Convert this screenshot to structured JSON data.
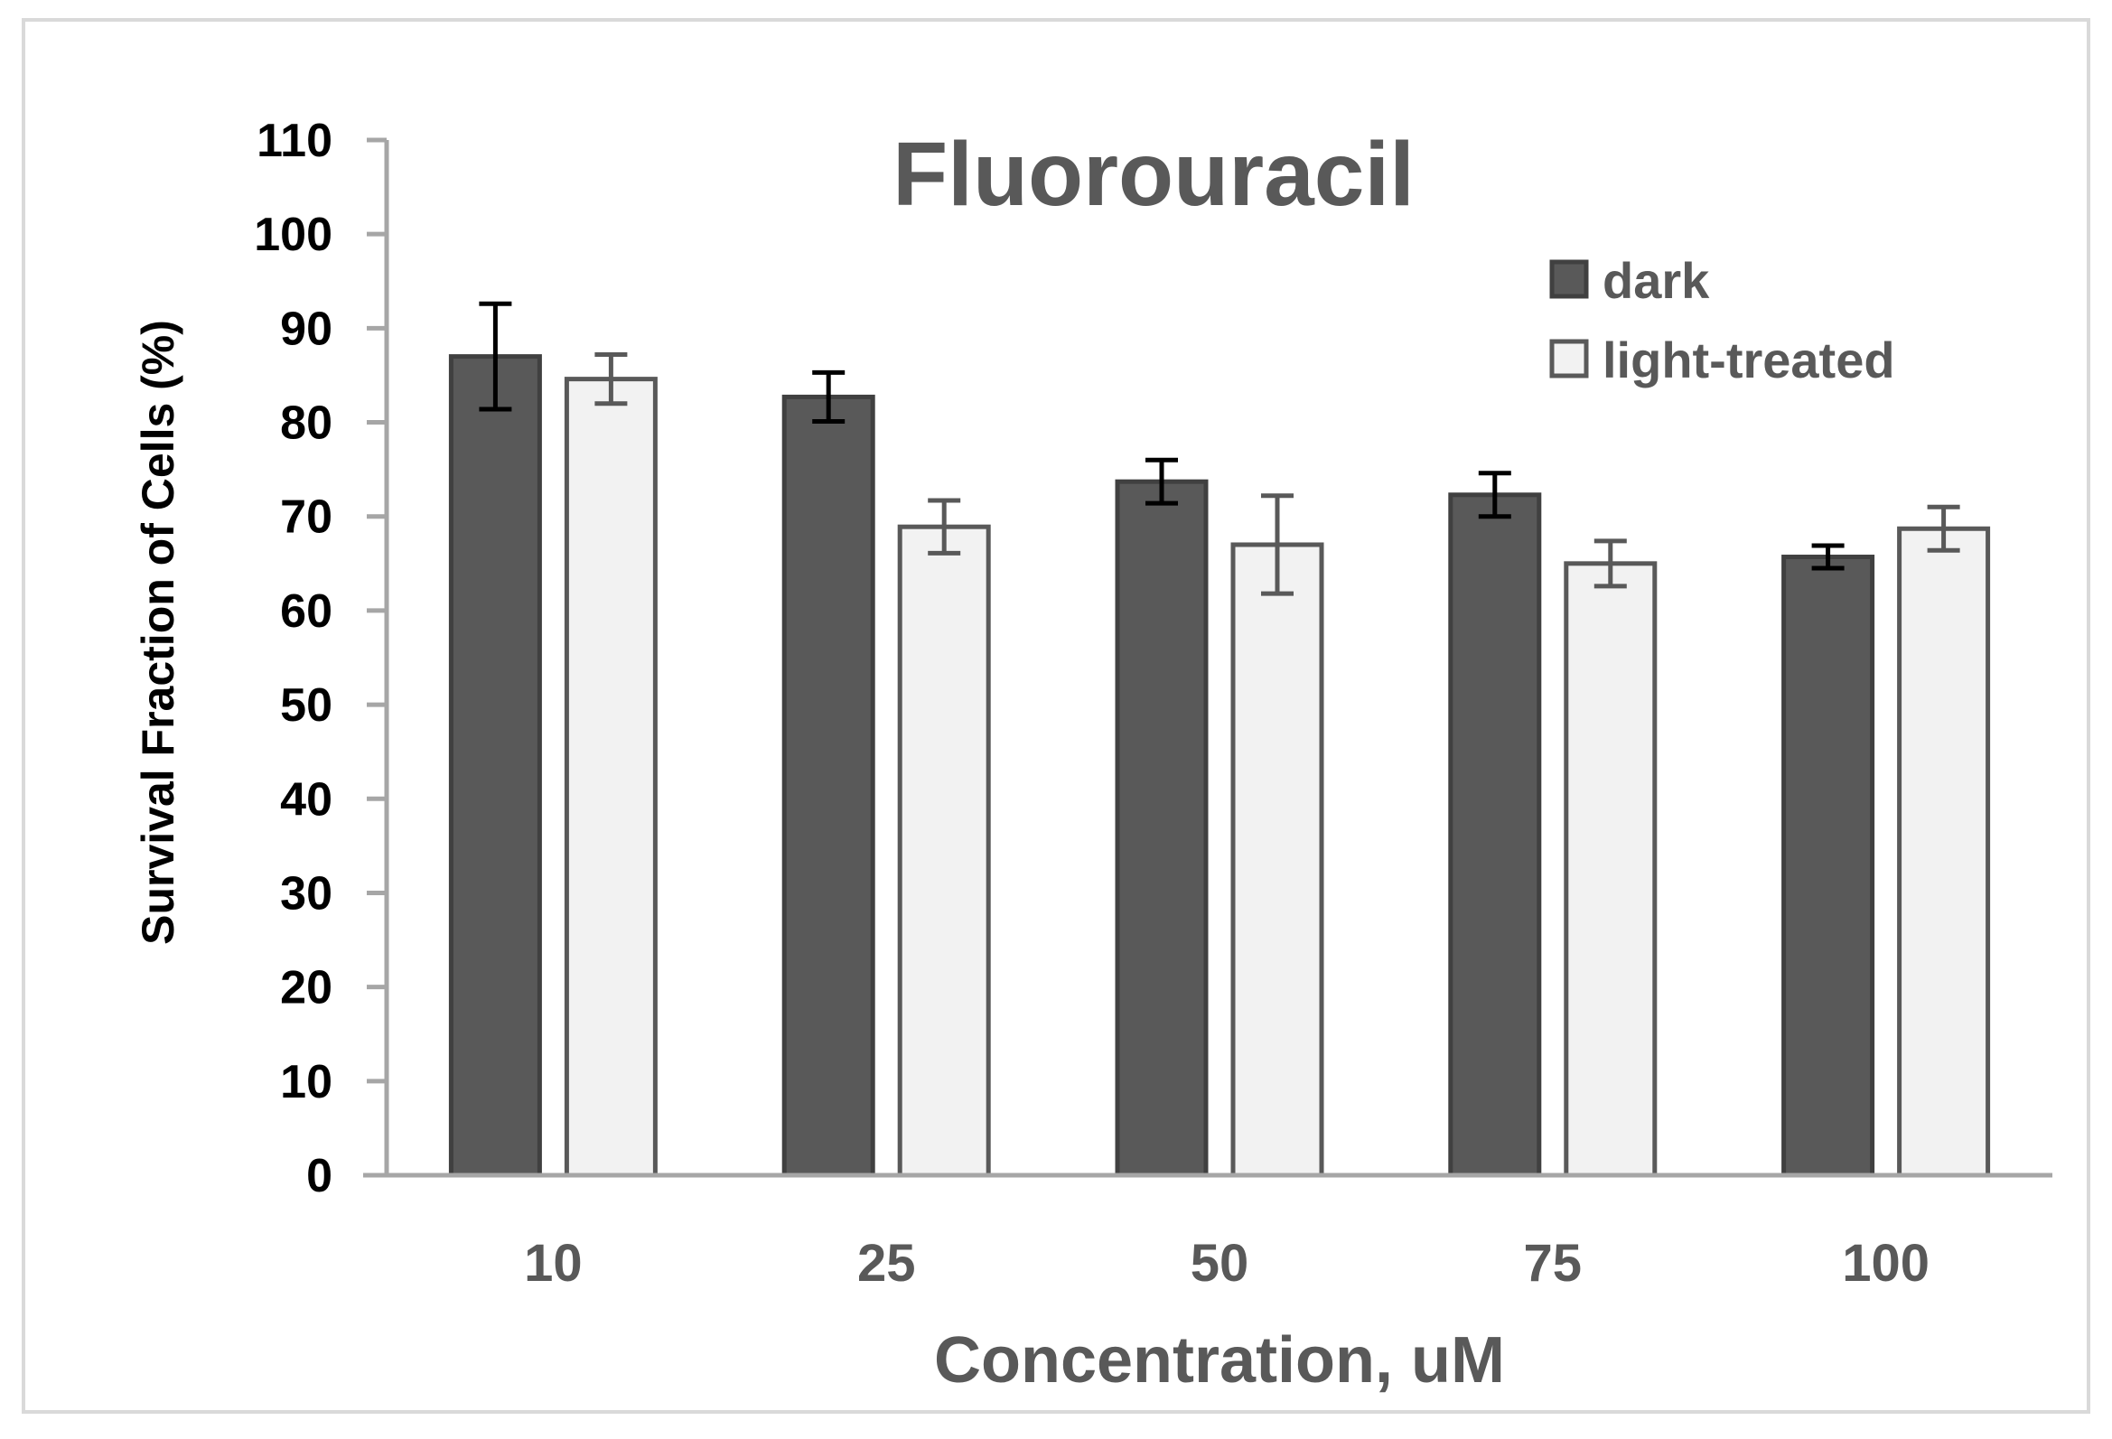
{
  "chart_data": {
    "type": "bar",
    "title": "Fluorouracil",
    "xlabel": "Concentration, uM",
    "ylabel": "Survival Fraction of Cells (%)",
    "categories": [
      "10",
      "25",
      "50",
      "75",
      "100"
    ],
    "ylim": [
      0,
      110
    ],
    "yticks": [
      0,
      10,
      20,
      30,
      40,
      50,
      60,
      70,
      80,
      90,
      100,
      110
    ],
    "ytick_labels": [
      "0",
      "10",
      "20",
      "30",
      "40",
      "50",
      "60",
      "70",
      "80",
      "90",
      "100",
      "110"
    ],
    "grid": false,
    "legend_position": "top-right",
    "series": [
      {
        "name": "dark",
        "values": [
          87,
          82.7,
          73.7,
          72.3,
          65.7
        ],
        "errors": [
          5.6,
          2.6,
          2.3,
          2.3,
          1.2
        ],
        "fill_color": "#595959",
        "stroke_color": "#404040",
        "error_color": "#000000"
      },
      {
        "name": "light-treated",
        "values": [
          84.6,
          68.9,
          67,
          65,
          68.7
        ],
        "errors": [
          2.6,
          2.8,
          5.2,
          2.4,
          2.3
        ],
        "fill_color": "#f2f2f2",
        "stroke_color": "#595959",
        "error_color": "#595959"
      }
    ]
  }
}
